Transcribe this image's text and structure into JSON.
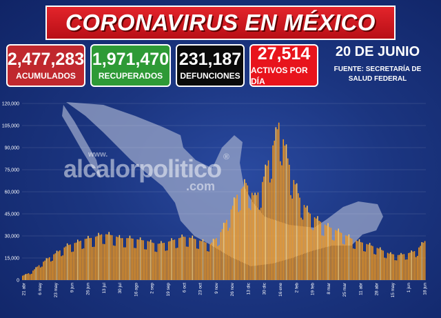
{
  "title": "CORONAVIRUS EN MÉXICO",
  "stats": [
    {
      "value": "2,477,283",
      "label": "ACUMULADOS",
      "color": "#c0282e"
    },
    {
      "value": "1,971,470",
      "label": "RECUPERADOS",
      "color": "#2e9a36"
    },
    {
      "value": "231,187",
      "label": "DEFUNCIONES",
      "color": "#0a0a0a"
    },
    {
      "value": "27,514",
      "label": "ACTIVOS POR DÍA",
      "color": "#e8141c"
    }
  ],
  "date": "20 DE JUNIO",
  "source_line1": "FUENTE: SECRETARÍA DE",
  "source_line2": "SALUD FEDERAL",
  "watermark": {
    "www": "www.",
    "main": "alcalorpolitico",
    "com": ".com",
    "reg": "®"
  },
  "colors": {
    "bar": "#f59a1c",
    "bar_light": "#ffc55a",
    "map": "#9aa6c8"
  },
  "chart_data": {
    "type": "bar",
    "ylim": [
      0,
      120000
    ],
    "yticks": [
      "0",
      "15,000",
      "30,000",
      "45,000",
      "60,000",
      "75,000",
      "90,000",
      "105,000",
      "120,000"
    ],
    "xticks": [
      "21 abr",
      "6 may",
      "23 may",
      "9 jun",
      "26 jun",
      "13 jul",
      "30 jul",
      "16 ago",
      "2 sep",
      "19 sep",
      "6 oct",
      "23 oct",
      "9 nov",
      "26 nov",
      "13 dic",
      "30 dic",
      "16 ene",
      "2 feb",
      "19 feb",
      "8 mar",
      "25 mar",
      "11 abr",
      "28 abr",
      "15 may",
      "1 jun",
      "18 jun"
    ],
    "knots": [
      [
        0,
        3000
      ],
      [
        6,
        5500
      ],
      [
        12,
        11000
      ],
      [
        18,
        15500
      ],
      [
        24,
        19500
      ],
      [
        30,
        23500
      ],
      [
        36,
        25500
      ],
      [
        42,
        28000
      ],
      [
        48,
        29000
      ],
      [
        54,
        31500
      ],
      [
        60,
        30500
      ],
      [
        66,
        28500
      ],
      [
        72,
        28500
      ],
      [
        78,
        27500
      ],
      [
        84,
        26500
      ],
      [
        90,
        24500
      ],
      [
        96,
        25500
      ],
      [
        102,
        27500
      ],
      [
        108,
        29500
      ],
      [
        114,
        28500
      ],
      [
        120,
        26500
      ],
      [
        126,
        24500
      ],
      [
        132,
        30500
      ],
      [
        138,
        43000
      ],
      [
        144,
        58000
      ],
      [
        150,
        66000
      ],
      [
        156,
        56000
      ],
      [
        160,
        63000
      ],
      [
        166,
        85000
      ],
      [
        170,
        98000
      ],
      [
        172,
        107000
      ],
      [
        174,
        100000
      ],
      [
        180,
        74000
      ],
      [
        186,
        56000
      ],
      [
        192,
        46000
      ],
      [
        198,
        41000
      ],
      [
        204,
        37000
      ],
      [
        210,
        34000
      ],
      [
        216,
        31000
      ],
      [
        222,
        27500
      ],
      [
        228,
        25500
      ],
      [
        234,
        23500
      ],
      [
        240,
        21000
      ],
      [
        246,
        18000
      ],
      [
        252,
        17000
      ],
      [
        258,
        18000
      ],
      [
        264,
        20000
      ],
      [
        270,
        26500
      ]
    ]
  }
}
